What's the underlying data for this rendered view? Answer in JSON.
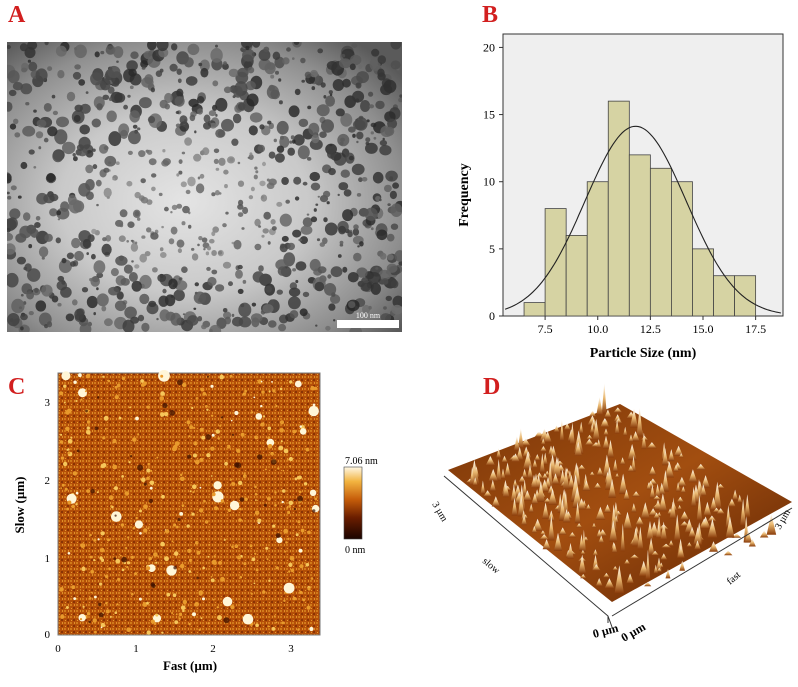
{
  "panels": {
    "a": {
      "label": "A",
      "scalebar_label": "100 nm"
    },
    "b": {
      "label": "B"
    },
    "c": {
      "label": "C",
      "colorbar_max": "7.06 nm",
      "colorbar_min": "0 nm",
      "xlabel": "Fast (µm)",
      "ylabel": "Slow (µm)",
      "xticks": [
        "0",
        "1",
        "2",
        "3"
      ],
      "yticks": [
        "0",
        "1",
        "2",
        "3"
      ]
    },
    "d": {
      "label": "D",
      "axis_slow": "slow",
      "axis_fast": "fast",
      "tick_3um_left": "3 µm",
      "tick_3um_right": "3 µm",
      "tick_0um_left": "0 µm",
      "tick_0um_right": "0 µm"
    }
  },
  "colors": {
    "letter": "#d21f1f",
    "bar_fill": "#d6d3a3",
    "plot_bg": "#efefef"
  },
  "chart_data": {
    "type": "bar",
    "title": "",
    "xlabel": "Particle Size (nm)",
    "ylabel": "Frequency",
    "bins": [
      {
        "from": 6.5,
        "to": 7.5,
        "count": 1
      },
      {
        "from": 7.5,
        "to": 8.5,
        "count": 8
      },
      {
        "from": 8.5,
        "to": 9.5,
        "count": 6
      },
      {
        "from": 9.5,
        "to": 10.5,
        "count": 10
      },
      {
        "from": 10.5,
        "to": 11.5,
        "count": 16
      },
      {
        "from": 11.5,
        "to": 12.5,
        "count": 12
      },
      {
        "from": 12.5,
        "to": 13.5,
        "count": 11
      },
      {
        "from": 13.5,
        "to": 14.5,
        "count": 10
      },
      {
        "from": 14.5,
        "to": 15.5,
        "count": 5
      },
      {
        "from": 15.5,
        "to": 16.5,
        "count": 3
      },
      {
        "from": 16.5,
        "to": 17.5,
        "count": 3
      }
    ],
    "normal_fit": {
      "mean": 11.8,
      "sd": 2.4,
      "n": 85,
      "bin_width": 1.0
    },
    "xlim": [
      5.5,
      18.8
    ],
    "ylim": [
      0,
      21
    ],
    "xticks": [
      7.5,
      10.0,
      12.5,
      15.0,
      17.5
    ],
    "xtick_labels": [
      "7.5",
      "10.0",
      "12.5",
      "15.0",
      "17.5"
    ],
    "yticks": [
      0,
      5,
      10,
      15,
      20
    ],
    "ytick_labels": [
      "0",
      "5",
      "10",
      "15",
      "20"
    ]
  }
}
